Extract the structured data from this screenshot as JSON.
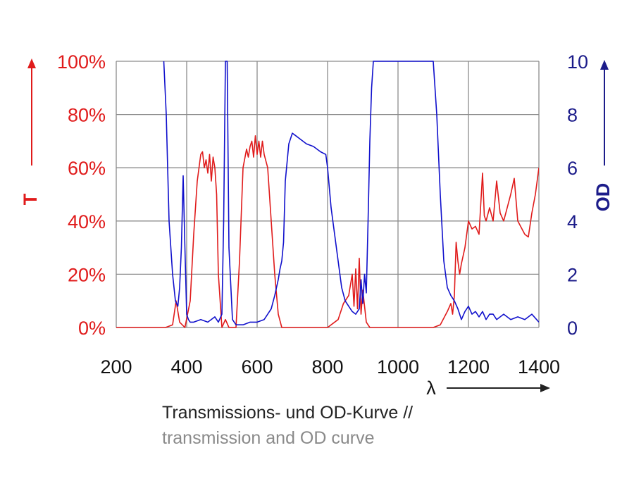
{
  "chart_data": {
    "type": "line",
    "x_range": [
      200,
      1400
    ],
    "x_ticks": [
      200,
      400,
      600,
      800,
      1000,
      1200,
      1400
    ],
    "x_label": "λ",
    "y_left": {
      "label": "T",
      "range": [
        0,
        100
      ],
      "ticks": [
        "0%",
        "20%",
        "40%",
        "60%",
        "80%",
        "100%"
      ],
      "color": "#e01b1b"
    },
    "y_right": {
      "label": "OD",
      "range": [
        0,
        10
      ],
      "ticks": [
        "0",
        "2",
        "4",
        "6",
        "8",
        "10"
      ],
      "color": "#1c1c8a"
    },
    "grid": true,
    "series": [
      {
        "axis": "left",
        "color": "#e01b1b",
        "x": [
          200,
          340,
          360,
          370,
          380,
          395,
          410,
          420,
          430,
          440,
          445,
          450,
          455,
          460,
          465,
          470,
          475,
          480,
          485,
          490,
          500,
          510,
          520,
          540,
          550,
          560,
          570,
          575,
          580,
          585,
          590,
          595,
          600,
          605,
          610,
          615,
          620,
          630,
          640,
          650,
          660,
          670,
          800,
          830,
          845,
          860,
          870,
          875,
          880,
          885,
          890,
          895,
          900,
          910,
          920,
          1100,
          1120,
          1140,
          1150,
          1155,
          1160,
          1165,
          1170,
          1175,
          1180,
          1190,
          1200,
          1210,
          1220,
          1230,
          1240,
          1245,
          1250,
          1260,
          1270,
          1280,
          1290,
          1300,
          1310,
          1320,
          1330,
          1340,
          1360,
          1370,
          1380,
          1390,
          1400
        ],
        "y": [
          0,
          0,
          1,
          10,
          2,
          0,
          10,
          35,
          55,
          65,
          66,
          60,
          63,
          58,
          65,
          55,
          64,
          60,
          50,
          20,
          0,
          3,
          0,
          0,
          25,
          60,
          67,
          64,
          68,
          70,
          64,
          72,
          65,
          70,
          64,
          70,
          65,
          60,
          40,
          20,
          5,
          0,
          0,
          3,
          9,
          12,
          20,
          8,
          22,
          7,
          26,
          5,
          14,
          2,
          0,
          0,
          1,
          6,
          9,
          5,
          12,
          32,
          25,
          20,
          24,
          30,
          40,
          37,
          38,
          35,
          58,
          42,
          40,
          45,
          40,
          55,
          43,
          40,
          45,
          50,
          56,
          40,
          35,
          34,
          43,
          50,
          60
        ]
      },
      {
        "axis": "right",
        "color": "#1010cc",
        "x": [
          335,
          342,
          350,
          360,
          368,
          375,
          380,
          385,
          390,
          395,
          400,
          405,
          410,
          420,
          440,
          460,
          480,
          490,
          500,
          505,
          510,
          515,
          520,
          530,
          540,
          560,
          580,
          600,
          620,
          640,
          650,
          660,
          665,
          670,
          675,
          680,
          690,
          700,
          710,
          720,
          740,
          760,
          780,
          795,
          800,
          810,
          820,
          830,
          840,
          850,
          860,
          870,
          880,
          890,
          895,
          900,
          905,
          910,
          915,
          920,
          925,
          930,
          940,
          950,
          1000,
          1100,
          1110,
          1120,
          1130,
          1140,
          1150,
          1160,
          1170,
          1180,
          1190,
          1200,
          1210,
          1220,
          1230,
          1240,
          1250,
          1260,
          1270,
          1280,
          1300,
          1320,
          1340,
          1360,
          1380,
          1400
        ],
        "y": [
          10,
          8,
          4,
          2,
          1,
          0.8,
          1.5,
          3,
          5.7,
          3,
          0.5,
          0.3,
          0.2,
          0.2,
          0.3,
          0.2,
          0.4,
          0.2,
          0.5,
          4,
          10,
          10,
          3,
          0.3,
          0.1,
          0.1,
          0.2,
          0.2,
          0.3,
          0.7,
          1.2,
          1.8,
          2.2,
          2.5,
          3.2,
          5.5,
          6.9,
          7.3,
          7.2,
          7.1,
          6.9,
          6.8,
          6.6,
          6.5,
          6,
          4.5,
          3.5,
          2.5,
          1.5,
          1,
          0.8,
          0.6,
          0.5,
          0.7,
          1.8,
          0.9,
          2,
          1.3,
          4,
          7,
          9,
          10,
          10,
          10,
          10,
          10,
          8,
          5,
          2.5,
          1.5,
          1.2,
          1,
          0.7,
          0.3,
          0.6,
          0.8,
          0.5,
          0.6,
          0.4,
          0.6,
          0.3,
          0.5,
          0.5,
          0.3,
          0.5,
          0.3,
          0.4,
          0.3,
          0.5,
          0.2
        ]
      }
    ]
  },
  "caption": {
    "line1": "Transmissions- und OD-Kurve //",
    "line2": "transmission and OD curve"
  }
}
